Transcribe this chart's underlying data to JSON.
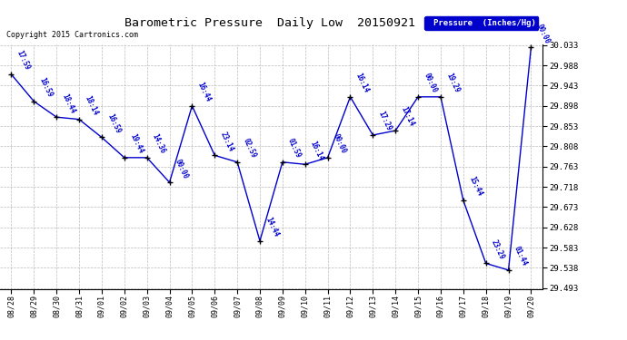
{
  "title": "Barometric Pressure  Daily Low  20150921",
  "copyright": "Copyright 2015 Cartronics.com",
  "legend_label": "Pressure  (Inches/Hg)",
  "x_labels": [
    "08/28",
    "08/29",
    "08/30",
    "08/31",
    "09/01",
    "09/02",
    "09/03",
    "09/04",
    "09/05",
    "09/06",
    "09/07",
    "09/08",
    "09/09",
    "09/10",
    "09/11",
    "09/12",
    "09/13",
    "09/14",
    "09/15",
    "09/16",
    "09/17",
    "09/18",
    "09/19",
    "09/20"
  ],
  "y_values": [
    29.968,
    29.908,
    29.873,
    29.868,
    29.828,
    29.783,
    29.783,
    29.728,
    29.898,
    29.788,
    29.773,
    29.598,
    29.773,
    29.768,
    29.783,
    29.918,
    29.833,
    29.843,
    29.918,
    29.918,
    29.688,
    29.548,
    29.533,
    30.028
  ],
  "point_labels": [
    "17:59",
    "16:59",
    "18:44",
    "18:14",
    "16:59",
    "19:44",
    "14:36",
    "00:00",
    "16:44",
    "23:14",
    "02:59",
    "14:44",
    "01:59",
    "16:14",
    "00:00",
    "16:14",
    "17:29",
    "17:14",
    "00:00",
    "19:29",
    "15:44",
    "23:29",
    "01:44",
    "00:00"
  ],
  "y_min": 29.493,
  "y_max": 30.033,
  "y_ticks": [
    29.493,
    29.538,
    29.583,
    29.628,
    29.673,
    29.718,
    29.763,
    29.808,
    29.853,
    29.898,
    29.943,
    29.988,
    30.033
  ],
  "line_color": "#0000cc",
  "marker_color": "#000000",
  "bg_color": "#ffffff",
  "grid_color": "#aaaaaa",
  "title_color": "#000000",
  "label_color": "#0000cc",
  "legend_bg": "#0000cc",
  "legend_text_color": "#ffffff"
}
